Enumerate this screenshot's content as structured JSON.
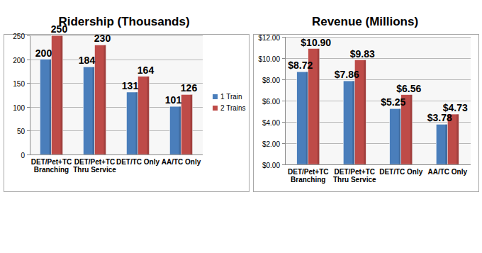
{
  "chart_data": [
    {
      "type": "bar",
      "title": "Ridership (Thousands)",
      "categories": [
        "DET/Pet+TC Branching",
        "DET/Pet+TC Thru Service",
        "DET/TC Only",
        "AA/TC Only"
      ],
      "series": [
        {
          "name": "1 Train",
          "color": "#4a7ebb",
          "values": [
            200,
            184,
            131,
            101
          ]
        },
        {
          "name": "2 Trains",
          "color": "#be4b48",
          "values": [
            250,
            230,
            164,
            126
          ]
        }
      ],
      "ylim": [
        0,
        250
      ],
      "yticks": [
        0,
        50,
        100,
        150,
        200,
        250
      ],
      "grid": true,
      "legend": "right",
      "data_labels": true
    },
    {
      "type": "bar",
      "title": "Revenue (Millions)",
      "categories": [
        "DET/Pet+TC Branching",
        "DET/Pet+TC Thru Service",
        "DET/TC Only",
        "AA/TC Only"
      ],
      "series": [
        {
          "color": "#4a7ebb",
          "values": [
            8.72,
            7.86,
            5.25,
            3.78
          ],
          "value_labels": [
            "$8.72",
            "$7.86",
            "$5.25",
            "$3.78"
          ]
        },
        {
          "color": "#be4b48",
          "values": [
            10.9,
            9.83,
            6.56,
            4.73
          ],
          "value_labels": [
            "$10.90",
            "$9.83",
            "$6.56",
            "$4.73"
          ]
        }
      ],
      "ylim": [
        0,
        12
      ],
      "yticks": [
        {
          "value": 0,
          "label": "$0.00"
        },
        {
          "value": 2,
          "label": "$2.00"
        },
        {
          "value": 4,
          "label": "$4.00"
        },
        {
          "value": 6,
          "label": "$6.00"
        },
        {
          "value": 8,
          "label": "$8.00"
        },
        {
          "value": 10,
          "label": "$10.00"
        },
        {
          "value": 12,
          "label": "$12.00"
        }
      ],
      "grid": true,
      "data_labels": true
    }
  ]
}
